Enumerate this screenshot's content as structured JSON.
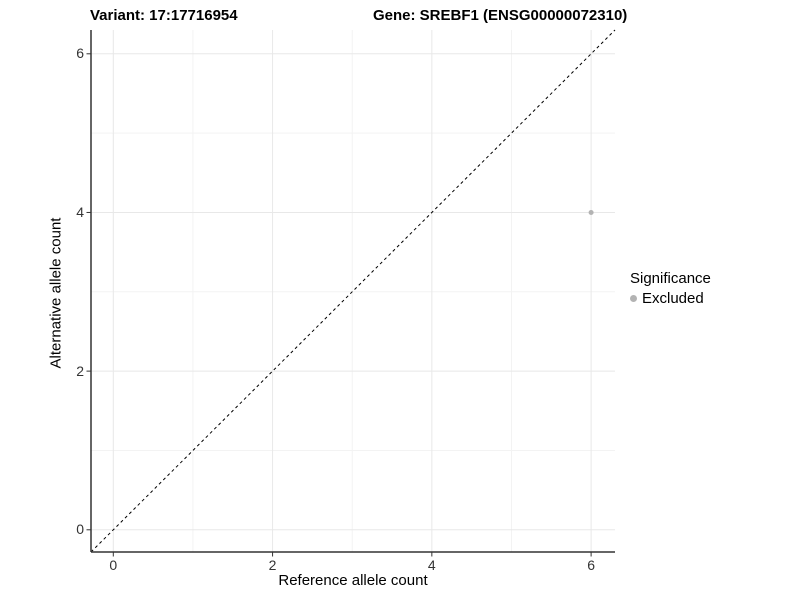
{
  "header": {
    "variant_title": "Variant: 17:17716954",
    "gene_title": "Gene: SREBF1 (ENSG00000072310)"
  },
  "legend": {
    "title": "Significance",
    "items": [
      {
        "label": "Excluded",
        "color": "#b3b3b3"
      }
    ]
  },
  "colors": {
    "background": "#ffffff",
    "major_grid": "#e8e8e8",
    "minor_grid": "#f3f3f3",
    "axis_line": "#333333",
    "tick_mark": "#333333",
    "reference_line": "#000000",
    "point_excluded": "#b3b3b3"
  },
  "chart_data": {
    "type": "scatter",
    "title_left": "Variant: 17:17716954",
    "title_right": "Gene: SREBF1 (ENSG00000072310)",
    "xlabel": "Reference allele count",
    "ylabel": "Alternative allele count",
    "x_ticks": [
      0,
      2,
      4,
      6
    ],
    "y_ticks": [
      0,
      2,
      4,
      6
    ],
    "x_minor_ticks": [
      1,
      3,
      5
    ],
    "y_minor_ticks": [
      1,
      3,
      5
    ],
    "xlim": [
      -0.28,
      6.3
    ],
    "ylim": [
      -0.28,
      6.3
    ],
    "grid": true,
    "legend_position": "right",
    "series": [
      {
        "name": "Excluded",
        "color": "#b3b3b3",
        "points": [
          {
            "x": 6,
            "y": 4
          }
        ]
      }
    ],
    "reference_line": {
      "equation": "y = x",
      "style": "dashed",
      "color": "#000000",
      "from": [
        -0.28,
        -0.28
      ],
      "to": [
        6.3,
        6.3
      ]
    }
  }
}
